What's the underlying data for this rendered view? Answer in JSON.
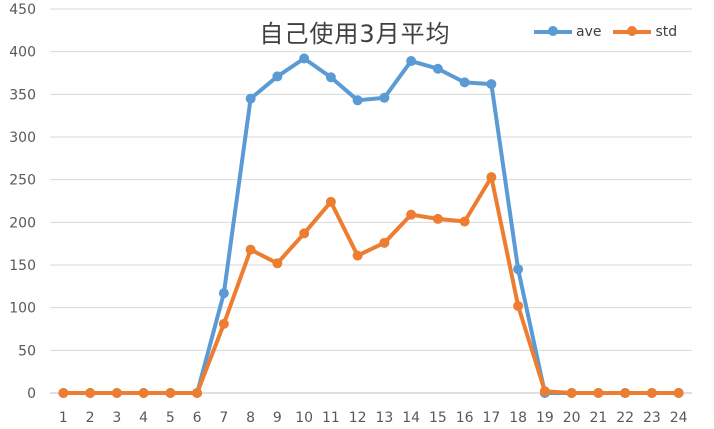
{
  "chart_data": {
    "type": "line",
    "title": "自己使用3月平均",
    "x": [
      "1",
      "2",
      "3",
      "4",
      "5",
      "6",
      "7",
      "8",
      "9",
      "10",
      "11",
      "12",
      "13",
      "14",
      "15",
      "16",
      "17",
      "18",
      "19",
      "20",
      "21",
      "22",
      "23",
      "24"
    ],
    "series": [
      {
        "name": "ave",
        "color": "#5B9BD5",
        "values": [
          0,
          0,
          0,
          0,
          0,
          0,
          117,
          345,
          371,
          392,
          370,
          343,
          346,
          389,
          380,
          364,
          362,
          145,
          0,
          0,
          0,
          0,
          0,
          0
        ]
      },
      {
        "name": "std",
        "color": "#ED7D31",
        "values": [
          0,
          0,
          0,
          0,
          0,
          0,
          81,
          168,
          152,
          187,
          224,
          161,
          176,
          209,
          204,
          201,
          253,
          102,
          2,
          0,
          0,
          0,
          0,
          0
        ]
      }
    ],
    "yticks": [
      "0",
      "50",
      "100",
      "150",
      "200",
      "250",
      "300",
      "350",
      "400",
      "450"
    ],
    "ylim": [
      0,
      450
    ],
    "grid": true,
    "legend_position": "top-right"
  }
}
